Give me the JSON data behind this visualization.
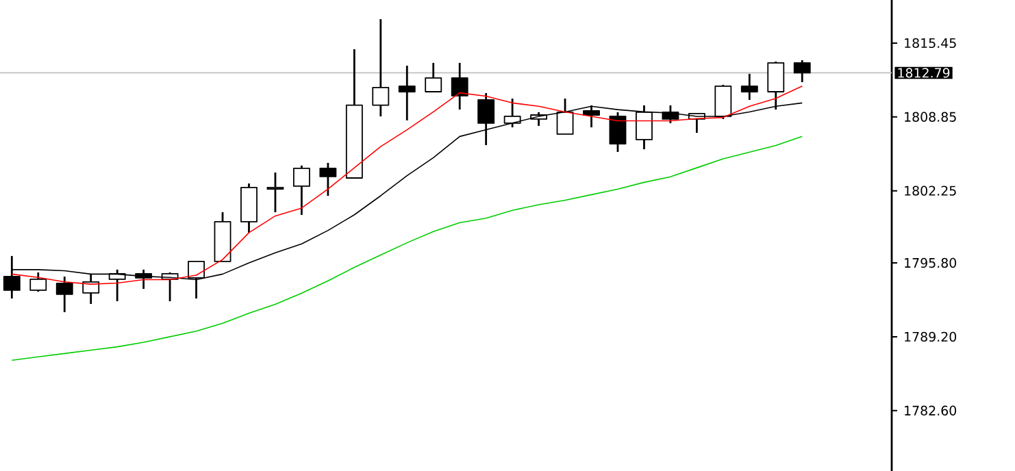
{
  "chart_data": {
    "type": "candlestick",
    "categories": [
      null,
      null,
      null,
      null,
      null,
      null,
      null,
      null,
      null,
      null,
      null,
      null,
      null,
      null,
      null,
      null,
      null,
      null,
      null,
      null,
      null,
      null,
      null,
      null,
      null,
      null,
      null,
      null,
      null,
      null,
      null
    ],
    "ohlc": [
      [
        1794.58,
        1796.42,
        1792.62,
        1793.36
      ],
      [
        1793.36,
        1794.95,
        1793.23,
        1794.34
      ],
      [
        1793.97,
        1794.58,
        1791.4,
        1793.0
      ],
      [
        1793.12,
        1794.83,
        1792.13,
        1794.1
      ],
      [
        1794.34,
        1795.2,
        1792.38,
        1794.83
      ],
      [
        1794.83,
        1795.2,
        1793.48,
        1794.46
      ],
      [
        1794.34,
        1794.95,
        1792.38,
        1794.83
      ],
      [
        1794.46,
        1795.93,
        1792.62,
        1795.93
      ],
      [
        1795.93,
        1800.33,
        1795.93,
        1799.48
      ],
      [
        1799.48,
        1802.9,
        1798.5,
        1802.54
      ],
      [
        1802.41,
        1803.88,
        1800.33,
        1802.54
      ],
      [
        1802.66,
        1804.5,
        1800.09,
        1804.25
      ],
      [
        1804.25,
        1804.74,
        1801.8,
        1803.52
      ],
      [
        1803.39,
        1814.9,
        1803.39,
        1809.9
      ],
      [
        1809.9,
        1817.59,
        1808.9,
        1811.47
      ],
      [
        1811.6,
        1813.43,
        1808.54,
        1811.1
      ],
      [
        1811.1,
        1813.68,
        1811.1,
        1812.33
      ],
      [
        1812.33,
        1813.68,
        1809.51,
        1810.74
      ],
      [
        1810.37,
        1810.98,
        1806.33,
        1808.29
      ],
      [
        1808.29,
        1810.49,
        1807.92,
        1808.9
      ],
      [
        1808.66,
        1809.27,
        1808.05,
        1809.02
      ],
      [
        1807.31,
        1810.49,
        1807.31,
        1809.27
      ],
      [
        1809.39,
        1809.88,
        1807.92,
        1809.02
      ],
      [
        1808.9,
        1809.27,
        1805.72,
        1806.45
      ],
      [
        1806.82,
        1809.88,
        1805.96,
        1809.27
      ],
      [
        1809.27,
        1809.88,
        1808.29,
        1808.66
      ],
      [
        1808.66,
        1809.15,
        1807.43,
        1809.15
      ],
      [
        1808.9,
        1811.72,
        1808.66,
        1811.6
      ],
      [
        1811.6,
        1812.7,
        1810.37,
        1811.1
      ],
      [
        1811.1,
        1813.8,
        1809.51,
        1813.68
      ],
      [
        1813.68,
        1813.92,
        1811.96,
        1812.79
      ]
    ],
    "series": [
      {
        "type": "line",
        "color": "#00cc00",
        "values": [
          1787.1,
          1787.4,
          1787.7,
          1788.0,
          1788.3,
          1788.7,
          1789.2,
          1789.7,
          1790.4,
          1791.3,
          1792.1,
          1793.1,
          1794.2,
          1795.4,
          1796.5,
          1797.6,
          1798.6,
          1799.4,
          1799.8,
          1800.5,
          1801.0,
          1801.4,
          1801.9,
          1802.4,
          1803.0,
          1803.5,
          1804.3,
          1805.1,
          1805.7,
          1806.3,
          1807.1
        ]
      },
      {
        "type": "line",
        "color": "#000000",
        "values": [
          1795.2,
          1795.2,
          1795.1,
          1794.8,
          1794.8,
          1794.6,
          1794.5,
          1794.3,
          1794.8,
          1795.8,
          1796.7,
          1797.5,
          1798.7,
          1800.1,
          1801.8,
          1803.6,
          1805.2,
          1807.1,
          1807.7,
          1808.3,
          1808.9,
          1809.3,
          1809.8,
          1809.5,
          1809.3,
          1809.2,
          1808.9,
          1808.9,
          1809.3,
          1809.8,
          1810.1
        ]
      },
      {
        "type": "line",
        "color": "#ff0000",
        "values": [
          1794.8,
          1794.5,
          1794.1,
          1793.9,
          1794.0,
          1794.3,
          1794.3,
          1794.7,
          1796.1,
          1798.5,
          1800.0,
          1800.7,
          1802.4,
          1804.3,
          1806.2,
          1807.7,
          1809.3,
          1811.0,
          1810.7,
          1810.1,
          1809.8,
          1809.3,
          1808.9,
          1808.5,
          1808.5,
          1808.5,
          1808.7,
          1808.8,
          1809.8,
          1810.5,
          1811.6
        ]
      }
    ],
    "ylim": [
      1777.2,
      1819.3
    ],
    "yticks": [
      1815.45,
      1808.85,
      1802.25,
      {
        "value": 1795.8,
        "label": "1795.80"
      },
      {
        "value": 1789.2,
        "label": "1789.20"
      },
      {
        "value": 1782.6,
        "label": "1782.60"
      }
    ],
    "tick_labels": "y",
    "ref_lines": [
      {
        "axis": "y",
        "value": 1812.79,
        "label": "1812.79",
        "color": "#c0c0c0"
      }
    ]
  }
}
